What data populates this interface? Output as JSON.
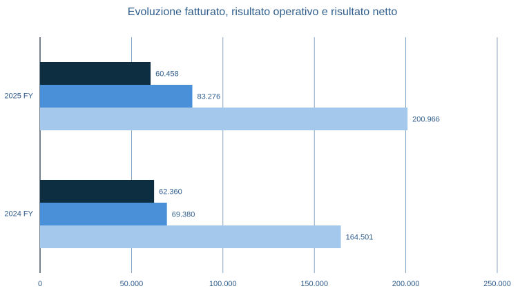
{
  "chart_data": {
    "type": "bar",
    "orientation": "horizontal",
    "title": "Evoluzione fatturato, risultato operativo e risultato netto",
    "categories": [
      "2025 FY",
      "2024 FY"
    ],
    "series": [
      {
        "color": "#0d2d40",
        "values": [
          60458,
          62360
        ],
        "value_labels": [
          "60.458",
          "62.360"
        ]
      },
      {
        "color": "#4a90d9",
        "values": [
          83276,
          69380
        ],
        "value_labels": [
          "83.276",
          "69.380"
        ]
      },
      {
        "color": "#a4c8ec",
        "values": [
          200966,
          164501
        ],
        "value_labels": [
          "200.966",
          "164.501"
        ]
      }
    ],
    "xlim": [
      0,
      250000
    ],
    "xticks": [
      0,
      {
        "value": 50000,
        "label": "50.000"
      },
      {
        "value": 100000,
        "label": "100.000"
      },
      {
        "value": 150000,
        "label": "150.000"
      },
      {
        "value": 200000,
        "label": "200.000"
      },
      {
        "value": 250000,
        "label": "250.000"
      }
    ],
    "grid": true
  }
}
